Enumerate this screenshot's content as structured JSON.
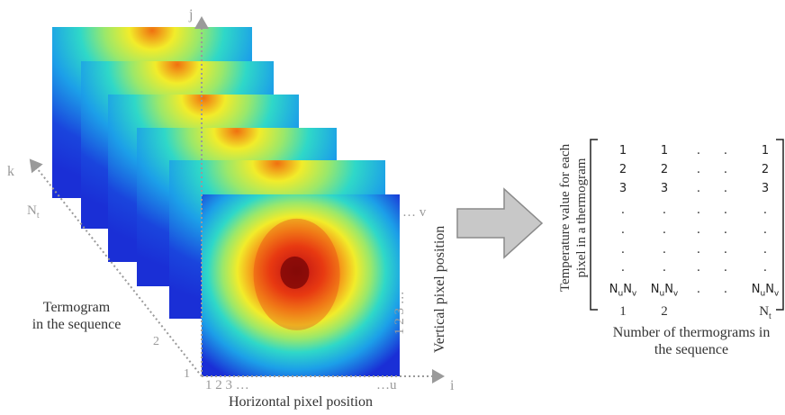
{
  "axes": {
    "j": "j",
    "i": "i",
    "k": "k",
    "nt": "N",
    "nt_sub": "t"
  },
  "ticks": {
    "frame_1": "1",
    "frame_2": "2",
    "horizontal_start": "1 2 3 …",
    "horizontal_end": "…u",
    "vertical_start": "1 2 3 …",
    "vertical_end": "… v"
  },
  "labels": {
    "sequence_line1": "Termogram",
    "sequence_line2": "in the sequence",
    "horizontal": "Horizontal pixel position",
    "vertical": "Vertical pixel position",
    "row_axis_line1": "Temperature value for each",
    "row_axis_line2": "pixel in a thermogram",
    "col_axis_line1": "Number of thermograms in",
    "col_axis_line2": "the sequence"
  },
  "matrix": {
    "rows": [
      [
        "1",
        "1",
        ".",
        ".",
        "1"
      ],
      [
        "2",
        "2",
        ".",
        ".",
        "2"
      ],
      [
        "3",
        "3",
        ".",
        ".",
        "3"
      ],
      [
        ".",
        ".",
        ".",
        ".",
        "."
      ],
      [
        ".",
        ".",
        ".",
        ".",
        "."
      ],
      [
        ".",
        ".",
        ".",
        ".",
        "."
      ],
      [
        ".",
        ".",
        ".",
        ".",
        "."
      ]
    ],
    "last_row": [
      {
        "a": "N",
        "a_sub": "u",
        "b": "N",
        "b_sub": "v"
      },
      {
        "a": "N",
        "a_sub": "u",
        "b": "N",
        "b_sub": "v"
      },
      {
        "dot": "."
      },
      {
        "dot": "."
      },
      {
        "a": "N",
        "a_sub": "u",
        "b": "N",
        "b_sub": "v"
      }
    ],
    "col_labels": [
      {
        "text": "1"
      },
      {
        "text": "2"
      },
      {
        "text": "N",
        "sub": "t"
      }
    ]
  },
  "colors": {
    "heat_low": "#1a2fd6",
    "heat_mid": "#2fd8c8",
    "heat_warm": "#f2ec2a",
    "heat_hot": "#e23a10",
    "heat_peak": "#8a0a0a",
    "arrow_fill": "#c8c8c8",
    "arrow_stroke": "#8a8a8a",
    "axis": "#9a9a9a"
  }
}
